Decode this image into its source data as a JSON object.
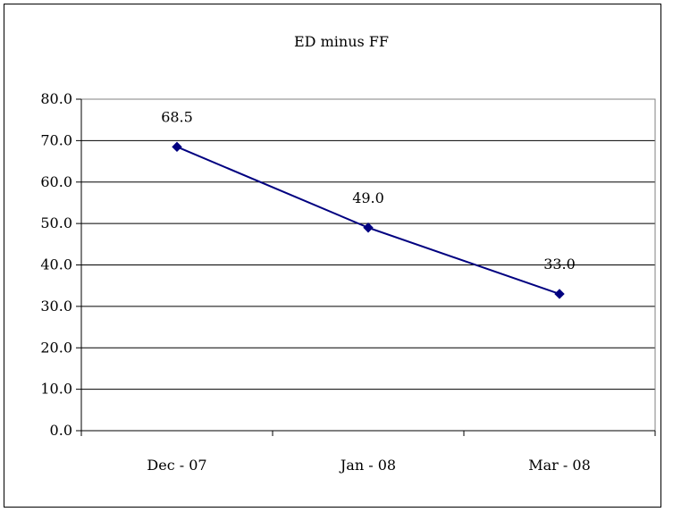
{
  "chart_data": {
    "type": "line",
    "title": "ED minus FF",
    "categories": [
      "Dec - 07",
      "Jan - 08",
      "Mar - 08"
    ],
    "series": [
      {
        "values": [
          68.5,
          49.0,
          33.0
        ],
        "color": "#000080",
        "marker": "diamond"
      }
    ],
    "data_labels": [
      "68.5",
      "49.0",
      "33.0"
    ],
    "y_ticks": [
      "0.0",
      "10.0",
      "20.0",
      "30.0",
      "40.0",
      "50.0",
      "60.0",
      "70.0",
      "80.0"
    ],
    "ylim": [
      0,
      80
    ],
    "y_step": 10,
    "grid": "horizontal",
    "legend": "none"
  }
}
